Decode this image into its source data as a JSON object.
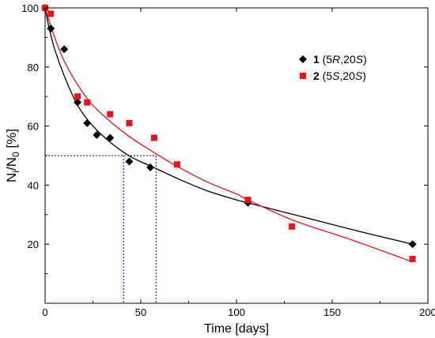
{
  "chart_data": {
    "type": "scatter",
    "xlabel": "Time [days]",
    "ylabel": {
      "base": "N",
      "sub1": "i",
      "mid": "/N",
      "sub2": "0",
      "tail": " [%]"
    },
    "xlim": [
      0,
      200
    ],
    "ylim": [
      0,
      100
    ],
    "x_ticks": [
      0,
      50,
      100,
      150,
      200
    ],
    "y_ticks": [
      20,
      40,
      60,
      80,
      100
    ],
    "grid": false,
    "legend_position": "top-right",
    "series": [
      {
        "name": {
          "number": "1",
          "open": " (5",
          "it1": "R",
          "mid": ",20",
          "it2": "S",
          "close": ")"
        },
        "marker": "diamond",
        "color": "#000000",
        "x": [
          0,
          3,
          10,
          17,
          22,
          27,
          34,
          44,
          55,
          106,
          192
        ],
        "y": [
          100,
          93,
          86,
          68,
          61,
          57,
          56,
          48,
          46,
          34,
          20
        ],
        "fit_x": [
          0,
          2,
          5,
          10,
          17,
          25,
          35,
          45,
          55,
          70,
          85,
          100,
          106,
          130,
          160,
          192
        ],
        "fit_y": [
          100,
          93.5,
          86,
          77,
          67,
          60,
          54,
          49.5,
          46.5,
          42,
          38,
          35,
          34,
          30,
          25,
          20
        ]
      },
      {
        "name": {
          "number": "2",
          "open": " (5",
          "it1": "S",
          "mid": ",20",
          "it2": "S",
          "close": ")"
        },
        "marker": "square",
        "color": "#e8141b",
        "x": [
          0,
          3,
          17,
          22,
          34,
          44,
          57,
          69,
          106,
          129,
          192
        ],
        "y": [
          100,
          98,
          70,
          68,
          64,
          61,
          56,
          47,
          35,
          26,
          15
        ],
        "fit_x": [
          0,
          5,
          10,
          17,
          25,
          35,
          45,
          57,
          70,
          85,
          100,
          106,
          130,
          160,
          192
        ],
        "fit_y": [
          100,
          90,
          82,
          74,
          67,
          61,
          56,
          51,
          46,
          41,
          37,
          35,
          28,
          21.5,
          14
        ]
      }
    ],
    "reference_lines": {
      "y_level": 50,
      "x_values": [
        41,
        58
      ],
      "style": "dotted",
      "color": "#1f2fbf"
    }
  }
}
